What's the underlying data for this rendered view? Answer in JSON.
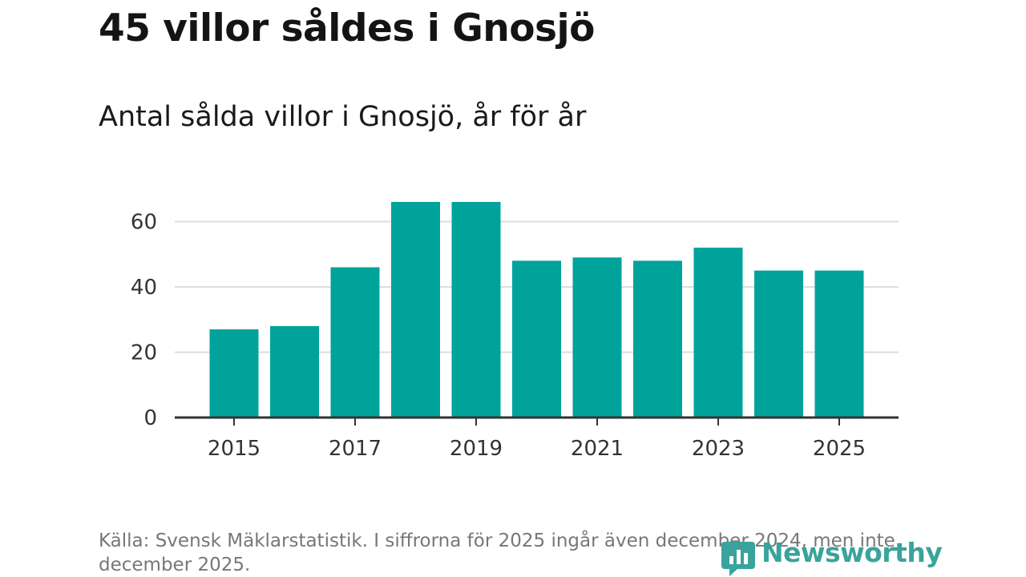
{
  "title": "45 villor såldes i Gnosjö",
  "subtitle": "Antal sålda villor i Gnosjö, år för år",
  "source": "Källa: Svensk Mäklarstatistik. I siffrorna för 2025 ingår även december 2024, men inte december 2025.",
  "logo": {
    "text": "Newsworthy",
    "icon": "newsworthy-logo-icon"
  },
  "colors": {
    "bar": "#00a39a",
    "grid": "#dddddd",
    "axis": "#333333",
    "logo": "#3aa39b"
  },
  "chart_data": {
    "type": "bar",
    "title": "45 villor såldes i Gnosjö",
    "subtitle": "Antal sålda villor i Gnosjö, år för år",
    "xlabel": "",
    "ylabel": "",
    "categories": [
      "2015",
      "2016",
      "2017",
      "2018",
      "2019",
      "2020",
      "2021",
      "2022",
      "2023",
      "2024",
      "2025"
    ],
    "values": [
      27,
      28,
      46,
      66,
      66,
      48,
      49,
      48,
      52,
      45,
      45
    ],
    "x_tick_labels": [
      "2015",
      "2017",
      "2019",
      "2021",
      "2023",
      "2025"
    ],
    "y_ticks": [
      0,
      20,
      40,
      60
    ],
    "ylim": [
      0,
      66
    ],
    "grid": true,
    "legend": "none"
  }
}
